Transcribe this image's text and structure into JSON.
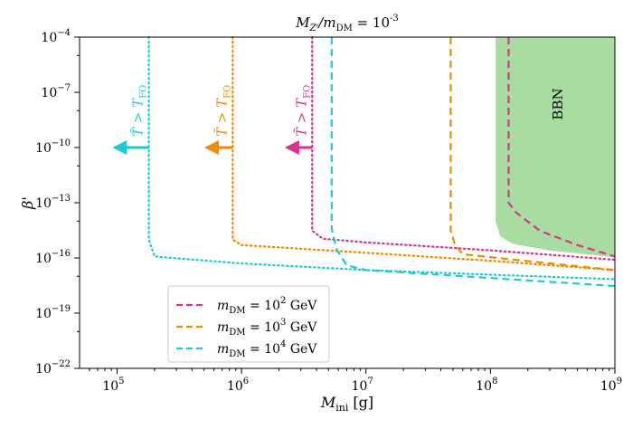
{
  "chart_data": {
    "type": "line",
    "title": "M_Z'/m_DM = 10^-3",
    "title_parts": {
      "main": "M",
      "sub1": "Z'",
      "mid": "/m",
      "sub2": "DM",
      "eq": " = 10",
      "sup": "-3"
    },
    "xlabel": "M_ini [g]",
    "xlabel_parts": {
      "main": "M",
      "sub": "ini",
      "unit": " [g]"
    },
    "ylabel": "β'",
    "xscale": "log",
    "yscale": "log",
    "xlim": [
      50000,
      1000000000
    ],
    "ylim": [
      1e-22,
      0.0001
    ],
    "x_ticks": [
      {
        "value": 100000,
        "base": "10",
        "exp": "5"
      },
      {
        "value": 1000000,
        "base": "10",
        "exp": "6"
      },
      {
        "value": 10000000,
        "base": "10",
        "exp": "7"
      },
      {
        "value": 100000000,
        "base": "10",
        "exp": "8"
      },
      {
        "value": 1000000000,
        "base": "10",
        "exp": "9"
      }
    ],
    "y_ticks": [
      {
        "value": 0.0001,
        "base": "10",
        "exp": "−4"
      },
      {
        "value": 1e-07,
        "base": "10",
        "exp": "−7"
      },
      {
        "value": 1e-10,
        "base": "10",
        "exp": "−10"
      },
      {
        "value": 1e-13,
        "base": "10",
        "exp": "−13"
      },
      {
        "value": 1e-16,
        "base": "10",
        "exp": "−16"
      },
      {
        "value": 1e-19,
        "base": "10",
        "exp": "−19"
      },
      {
        "value": 1e-22,
        "base": "10",
        "exp": "−22"
      }
    ],
    "series": [
      {
        "name": "m_DM = 10^2 GeV",
        "color": "#d9338f",
        "legend": {
          "pre": "m",
          "sub": "DM",
          "eq": " = 10",
          "sup": "2",
          "unit": " GeV"
        },
        "dashed": {
          "vertical_x": 140000000,
          "points": [
            [
              140000000,
              0.0001
            ],
            [
              140000000,
              1e-13
            ],
            [
              160000000,
              3e-14
            ],
            [
              250000000,
              3e-15
            ],
            [
              500000000,
              5e-16
            ],
            [
              1000000000,
              1.2e-16
            ]
          ]
        },
        "dotted": {
          "vertical_x": 3700000,
          "points": [
            [
              3700000,
              0.0001
            ],
            [
              3700000,
              3e-15
            ],
            [
              4500000,
              1.1e-15
            ],
            [
              10000000,
              7e-16
            ],
            [
              100000000,
              2.6e-16
            ],
            [
              1000000000,
              8e-17
            ]
          ]
        }
      },
      {
        "name": "m_DM = 10^3 GeV",
        "color": "#f08c00",
        "legend": {
          "pre": "m",
          "sub": "DM",
          "eq": " = 10",
          "sup": "3",
          "unit": " GeV"
        },
        "dashed": {
          "vertical_x": 48000000,
          "points": [
            [
              48000000,
              0.0001
            ],
            [
              48000000,
              3e-15
            ],
            [
              52000000,
              5e-16
            ],
            [
              60000000,
              1.6e-16
            ],
            [
              100000000,
              1.1e-16
            ],
            [
              1000000000,
              2.2e-17
            ]
          ]
        },
        "dotted": {
          "vertical_x": 850000,
          "points": [
            [
              850000,
              0.0001
            ],
            [
              850000,
              1e-15
            ],
            [
              1000000,
              5e-16
            ],
            [
              10000000,
              1.9e-16
            ],
            [
              100000000,
              7e-17
            ],
            [
              1000000000,
              2.2e-17
            ]
          ]
        }
      },
      {
        "name": "m_DM = 10^4 GeV",
        "color": "#1fcad3",
        "legend": {
          "pre": "m",
          "sub": "DM",
          "eq": " = 10",
          "sup": "4",
          "unit": " GeV"
        },
        "dashed": {
          "vertical_x": 5300000,
          "points": [
            [
              5300000,
              0.0001
            ],
            [
              5300000,
              4e-15
            ],
            [
              5800000,
              3e-16
            ],
            [
              7000000,
              4e-17
            ],
            [
              10000000,
              2.2e-17
            ],
            [
              1000000000,
              3e-18
            ]
          ]
        },
        "dotted": {
          "vertical_x": 180000,
          "points": [
            [
              180000,
              0.0001
            ],
            [
              180000,
              1e-15
            ],
            [
              200000,
              1.2e-16
            ],
            [
              1000000,
              5e-17
            ],
            [
              10000000,
              2.2e-17
            ],
            [
              1000000000,
              7e-18
            ]
          ]
        }
      }
    ],
    "region": {
      "label": "BBN",
      "color": "#a8dca0",
      "boundary": [
        [
          110000000,
          0.0001
        ],
        [
          110000000,
          1e-14
        ],
        [
          120000000,
          1.5e-15
        ],
        [
          150000000,
          6e-16
        ],
        [
          300000000,
          2.5e-16
        ],
        [
          1000000000,
          1.1e-16
        ]
      ]
    },
    "arrows": [
      {
        "series": 0,
        "tail_x": 3700000,
        "head_x": 2300000,
        "y": 1e-10,
        "label": "T̃ > T_FO"
      },
      {
        "series": 1,
        "tail_x": 850000,
        "head_x": 520000,
        "y": 1e-10,
        "label": "T̃ > T_FO"
      },
      {
        "series": 2,
        "tail_x": 180000,
        "head_x": 95000,
        "y": 1e-10,
        "label": "T̃ > T_FO"
      }
    ],
    "annotation_parts": {
      "main": "T̃ > T",
      "sub": "FO"
    },
    "legend_position": "lower-left"
  }
}
